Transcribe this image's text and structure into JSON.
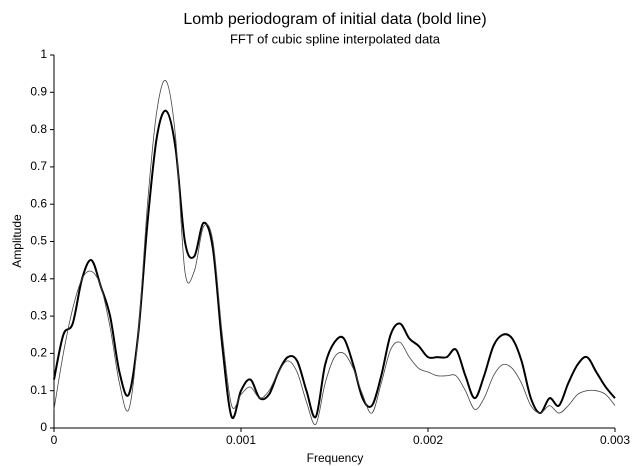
{
  "chart_data": {
    "type": "line",
    "title": "Lomb periodogram of initial data (bold line)",
    "subtitle": "FFT of cubic spline interpolated data",
    "xlabel": "Frequency",
    "ylabel": "Amplitude",
    "x": [
      0,
      5e-05,
      0.0001,
      0.00015,
      0.0002,
      0.00025,
      0.0003,
      0.00035,
      0.0004,
      0.00045,
      0.0005,
      0.00055,
      0.0006,
      0.00065,
      0.0007,
      0.00075,
      0.0008,
      0.00085,
      0.0009,
      0.00095,
      0.001,
      0.00105,
      0.0011,
      0.00115,
      0.0012,
      0.00125,
      0.0013,
      0.00135,
      0.0014,
      0.00145,
      0.0015,
      0.00155,
      0.0016,
      0.00165,
      0.0017,
      0.00175,
      0.0018,
      0.00185,
      0.0019,
      0.00195,
      0.002,
      0.00205,
      0.0021,
      0.00215,
      0.0022,
      0.00225,
      0.0023,
      0.00235,
      0.0024,
      0.00245,
      0.0025,
      0.00255,
      0.0026,
      0.00265,
      0.0027,
      0.00275,
      0.0028,
      0.00285,
      0.0029,
      0.00295,
      0.003
    ],
    "series": [
      {
        "name": "Lomb periodogram",
        "color": "#000000",
        "values": [
          0.13,
          0.25,
          0.28,
          0.4,
          0.45,
          0.38,
          0.3,
          0.15,
          0.09,
          0.25,
          0.55,
          0.78,
          0.85,
          0.75,
          0.5,
          0.46,
          0.55,
          0.48,
          0.22,
          0.03,
          0.1,
          0.13,
          0.08,
          0.09,
          0.15,
          0.19,
          0.18,
          0.1,
          0.03,
          0.17,
          0.23,
          0.24,
          0.17,
          0.08,
          0.06,
          0.14,
          0.25,
          0.28,
          0.24,
          0.22,
          0.19,
          0.19,
          0.19,
          0.21,
          0.14,
          0.08,
          0.14,
          0.22,
          0.25,
          0.24,
          0.18,
          0.08,
          0.04,
          0.08,
          0.06,
          0.12,
          0.17,
          0.19,
          0.15,
          0.11,
          0.08
        ]
      },
      {
        "name": "FFT",
        "color": "#444444",
        "values": [
          0.05,
          0.2,
          0.32,
          0.4,
          0.42,
          0.38,
          0.27,
          0.12,
          0.05,
          0.25,
          0.6,
          0.85,
          0.93,
          0.78,
          0.42,
          0.42,
          0.54,
          0.5,
          0.25,
          0.06,
          0.09,
          0.11,
          0.08,
          0.1,
          0.15,
          0.18,
          0.15,
          0.07,
          0.01,
          0.12,
          0.19,
          0.2,
          0.16,
          0.09,
          0.04,
          0.12,
          0.21,
          0.23,
          0.19,
          0.16,
          0.15,
          0.14,
          0.14,
          0.14,
          0.1,
          0.05,
          0.08,
          0.14,
          0.17,
          0.16,
          0.12,
          0.06,
          0.04,
          0.06,
          0.04,
          0.06,
          0.09,
          0.1,
          0.1,
          0.09,
          0.06
        ]
      }
    ],
    "xlim": [
      0,
      0.003
    ],
    "xticks": [
      0,
      0.001,
      0.002,
      0.003
    ],
    "ylim": [
      0,
      1
    ],
    "yticks": [
      0,
      0.1,
      0.2,
      0.3,
      0.4,
      0.5,
      0.6,
      0.7,
      0.8,
      0.9,
      1
    ]
  }
}
